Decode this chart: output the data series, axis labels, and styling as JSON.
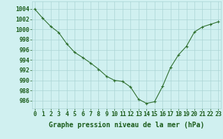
{
  "x": [
    0,
    1,
    2,
    3,
    4,
    5,
    6,
    7,
    8,
    9,
    10,
    11,
    12,
    13,
    14,
    15,
    16,
    17,
    18,
    19,
    20,
    21,
    22,
    23
  ],
  "y": [
    1004.0,
    1002.2,
    1000.6,
    999.4,
    997.2,
    995.5,
    994.5,
    993.4,
    992.2,
    990.8,
    990.0,
    989.8,
    988.7,
    986.3,
    985.5,
    985.8,
    988.8,
    992.5,
    995.0,
    996.7,
    999.5,
    1000.5,
    1001.0,
    1001.5
  ],
  "line_color": "#2d6e2d",
  "marker": "+",
  "marker_size": 3,
  "bg_color": "#d0f0f0",
  "grid_color": "#aad4d4",
  "xlabel": "Graphe pression niveau de la mer (hPa)",
  "ylim": [
    984.5,
    1005.5
  ],
  "yticks": [
    986,
    988,
    990,
    992,
    994,
    996,
    998,
    1000,
    1002,
    1004
  ],
  "xticks": [
    0,
    1,
    2,
    3,
    4,
    5,
    6,
    7,
    8,
    9,
    10,
    11,
    12,
    13,
    14,
    15,
    16,
    17,
    18,
    19,
    20,
    21,
    22,
    23
  ],
  "xlabel_fontsize": 7,
  "tick_fontsize": 6,
  "title_color": "#1a5c1a",
  "linewidth": 0.8,
  "marker_edge_width": 0.8
}
